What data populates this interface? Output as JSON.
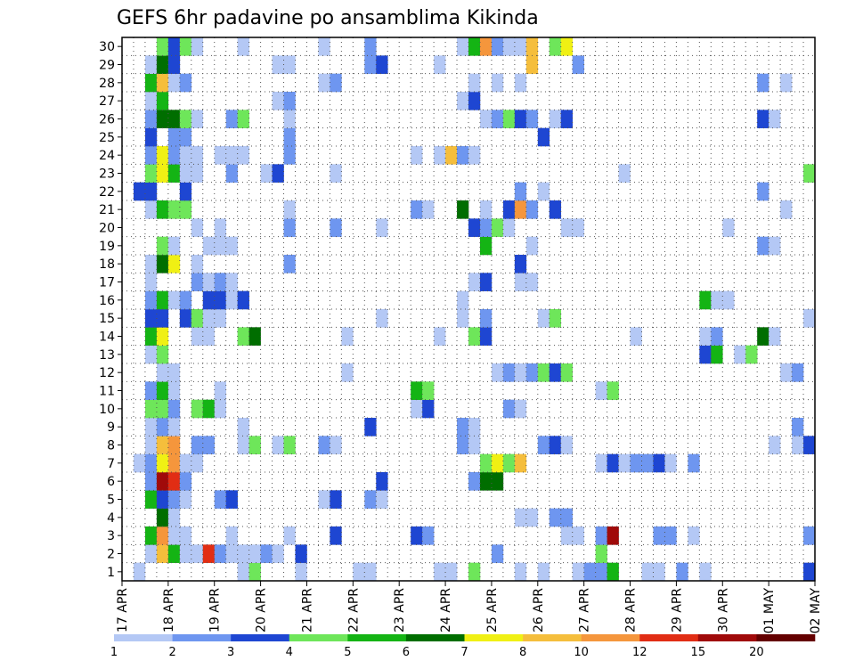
{
  "chart_data": {
    "type": "heatmap",
    "title": "GEFS 6hr padavine po ansamblima Kikinda",
    "xlabel": "",
    "ylabel": "",
    "x_tick_labels": [
      "17 APR",
      "18 APR",
      "19 APR",
      "20 APR",
      "21 APR",
      "22 APR",
      "23 APR",
      "24 APR",
      "25 APR",
      "26 APR",
      "27 APR",
      "28 APR",
      "29 APR",
      "30 APR",
      "01 MAY",
      "02 MAY"
    ],
    "y_tick_labels": [
      "1",
      "2",
      "3",
      "4",
      "5",
      "6",
      "7",
      "8",
      "9",
      "10",
      "11",
      "12",
      "13",
      "14",
      "15",
      "16",
      "17",
      "18",
      "19",
      "20",
      "21",
      "22",
      "23",
      "24",
      "25",
      "26",
      "27",
      "28",
      "29",
      "30"
    ],
    "x_range": [
      0,
      60
    ],
    "y_range": [
      0,
      30
    ],
    "grid": true,
    "colorbar": {
      "position": "bottom",
      "labels": [
        "1",
        "2",
        "3",
        "4",
        "5",
        "6",
        "7",
        "8",
        "10",
        "12",
        "15",
        "20"
      ],
      "colors": [
        "#b4c8f5",
        "#6e96f0",
        "#1e46d2",
        "#6ee65a",
        "#14b414",
        "#006e00",
        "#f0f014",
        "#f5be3c",
        "#f5963c",
        "#e12d14",
        "#a00a0a",
        "#640000"
      ]
    },
    "cells": [
      [
        1,
        0,
        0
      ],
      [
        10,
        0,
        0
      ],
      [
        11,
        0,
        3
      ],
      [
        15,
        0,
        0
      ],
      [
        20,
        0,
        0
      ],
      [
        21,
        0,
        0
      ],
      [
        27,
        0,
        0
      ],
      [
        28,
        0,
        0
      ],
      [
        30,
        0,
        3
      ],
      [
        34,
        0,
        0
      ],
      [
        36,
        0,
        0
      ],
      [
        39,
        0,
        0
      ],
      [
        40,
        0,
        1
      ],
      [
        41,
        0,
        1
      ],
      [
        42,
        0,
        4
      ],
      [
        45,
        0,
        0
      ],
      [
        46,
        0,
        0
      ],
      [
        48,
        0,
        1
      ],
      [
        50,
        0,
        0
      ],
      [
        59,
        0,
        2
      ],
      [
        2,
        1,
        0
      ],
      [
        3,
        1,
        7
      ],
      [
        4,
        1,
        4
      ],
      [
        5,
        1,
        0
      ],
      [
        6,
        1,
        0
      ],
      [
        7,
        1,
        9
      ],
      [
        8,
        1,
        1
      ],
      [
        9,
        1,
        0
      ],
      [
        10,
        1,
        0
      ],
      [
        11,
        1,
        0
      ],
      [
        12,
        1,
        1
      ],
      [
        13,
        1,
        0
      ],
      [
        15,
        1,
        2
      ],
      [
        32,
        1,
        1
      ],
      [
        41,
        1,
        3
      ],
      [
        2,
        2,
        4
      ],
      [
        3,
        2,
        8
      ],
      [
        4,
        2,
        0
      ],
      [
        5,
        2,
        0
      ],
      [
        9,
        2,
        0
      ],
      [
        14,
        2,
        0
      ],
      [
        18,
        2,
        2
      ],
      [
        25,
        2,
        2
      ],
      [
        26,
        2,
        1
      ],
      [
        38,
        2,
        0
      ],
      [
        39,
        2,
        0
      ],
      [
        41,
        2,
        1
      ],
      [
        42,
        2,
        10
      ],
      [
        46,
        2,
        1
      ],
      [
        47,
        2,
        1
      ],
      [
        49,
        2,
        0
      ],
      [
        59,
        2,
        1
      ],
      [
        3,
        3,
        5
      ],
      [
        4,
        3,
        0
      ],
      [
        34,
        3,
        0
      ],
      [
        35,
        3,
        0
      ],
      [
        37,
        3,
        1
      ],
      [
        38,
        3,
        1
      ],
      [
        2,
        4,
        4
      ],
      [
        3,
        4,
        2
      ],
      [
        4,
        4,
        1
      ],
      [
        5,
        4,
        0
      ],
      [
        8,
        4,
        1
      ],
      [
        9,
        4,
        2
      ],
      [
        17,
        4,
        0
      ],
      [
        18,
        4,
        2
      ],
      [
        21,
        4,
        1
      ],
      [
        22,
        4,
        0
      ],
      [
        2,
        5,
        1
      ],
      [
        3,
        5,
        10
      ],
      [
        4,
        5,
        9
      ],
      [
        5,
        5,
        1
      ],
      [
        22,
        5,
        2
      ],
      [
        30,
        5,
        1
      ],
      [
        31,
        5,
        5
      ],
      [
        32,
        5,
        5
      ],
      [
        1,
        6,
        0
      ],
      [
        2,
        6,
        1
      ],
      [
        3,
        6,
        6
      ],
      [
        4,
        6,
        8
      ],
      [
        5,
        6,
        0
      ],
      [
        6,
        6,
        0
      ],
      [
        31,
        6,
        3
      ],
      [
        32,
        6,
        6
      ],
      [
        33,
        6,
        3
      ],
      [
        34,
        6,
        7
      ],
      [
        41,
        6,
        0
      ],
      [
        42,
        6,
        2
      ],
      [
        43,
        6,
        0
      ],
      [
        44,
        6,
        1
      ],
      [
        45,
        6,
        1
      ],
      [
        46,
        6,
        2
      ],
      [
        47,
        6,
        0
      ],
      [
        49,
        6,
        1
      ],
      [
        2,
        7,
        0
      ],
      [
        3,
        7,
        7
      ],
      [
        4,
        7,
        8
      ],
      [
        6,
        7,
        1
      ],
      [
        7,
        7,
        1
      ],
      [
        10,
        7,
        0
      ],
      [
        11,
        7,
        3
      ],
      [
        13,
        7,
        0
      ],
      [
        14,
        7,
        3
      ],
      [
        17,
        7,
        1
      ],
      [
        18,
        7,
        0
      ],
      [
        29,
        7,
        1
      ],
      [
        30,
        7,
        0
      ],
      [
        36,
        7,
        1
      ],
      [
        37,
        7,
        2
      ],
      [
        38,
        7,
        0
      ],
      [
        56,
        7,
        0
      ],
      [
        58,
        7,
        0
      ],
      [
        59,
        7,
        2
      ],
      [
        2,
        8,
        0
      ],
      [
        3,
        8,
        1
      ],
      [
        4,
        8,
        0
      ],
      [
        10,
        8,
        0
      ],
      [
        21,
        8,
        2
      ],
      [
        29,
        8,
        1
      ],
      [
        30,
        8,
        0
      ],
      [
        58,
        8,
        1
      ],
      [
        2,
        9,
        3
      ],
      [
        3,
        9,
        3
      ],
      [
        4,
        9,
        1
      ],
      [
        6,
        9,
        3
      ],
      [
        7,
        9,
        4
      ],
      [
        8,
        9,
        0
      ],
      [
        25,
        9,
        0
      ],
      [
        26,
        9,
        2
      ],
      [
        33,
        9,
        1
      ],
      [
        34,
        9,
        0
      ],
      [
        2,
        10,
        1
      ],
      [
        3,
        10,
        4
      ],
      [
        4,
        10,
        0
      ],
      [
        8,
        10,
        0
      ],
      [
        25,
        10,
        4
      ],
      [
        26,
        10,
        3
      ],
      [
        41,
        10,
        0
      ],
      [
        42,
        10,
        3
      ],
      [
        3,
        11,
        0
      ],
      [
        4,
        11,
        0
      ],
      [
        19,
        11,
        0
      ],
      [
        32,
        11,
        0
      ],
      [
        33,
        11,
        1
      ],
      [
        34,
        11,
        0
      ],
      [
        35,
        11,
        1
      ],
      [
        36,
        11,
        3
      ],
      [
        37,
        11,
        2
      ],
      [
        38,
        11,
        3
      ],
      [
        57,
        11,
        0
      ],
      [
        58,
        11,
        1
      ],
      [
        2,
        12,
        0
      ],
      [
        3,
        12,
        3
      ],
      [
        50,
        12,
        2
      ],
      [
        51,
        12,
        4
      ],
      [
        53,
        12,
        0
      ],
      [
        54,
        12,
        3
      ],
      [
        2,
        13,
        4
      ],
      [
        3,
        13,
        6
      ],
      [
        6,
        13,
        0
      ],
      [
        7,
        13,
        0
      ],
      [
        10,
        13,
        3
      ],
      [
        11,
        13,
        5
      ],
      [
        19,
        13,
        0
      ],
      [
        27,
        13,
        0
      ],
      [
        30,
        13,
        3
      ],
      [
        31,
        13,
        2
      ],
      [
        44,
        13,
        0
      ],
      [
        50,
        13,
        0
      ],
      [
        51,
        13,
        1
      ],
      [
        55,
        13,
        5
      ],
      [
        56,
        13,
        0
      ],
      [
        2,
        14,
        2
      ],
      [
        3,
        14,
        2
      ],
      [
        5,
        14,
        2
      ],
      [
        6,
        14,
        3
      ],
      [
        7,
        14,
        0
      ],
      [
        8,
        14,
        0
      ],
      [
        22,
        14,
        0
      ],
      [
        29,
        14,
        0
      ],
      [
        31,
        14,
        1
      ],
      [
        36,
        14,
        0
      ],
      [
        37,
        14,
        3
      ],
      [
        59,
        14,
        0
      ],
      [
        2,
        15,
        1
      ],
      [
        3,
        15,
        4
      ],
      [
        4,
        15,
        0
      ],
      [
        5,
        15,
        1
      ],
      [
        7,
        15,
        2
      ],
      [
        8,
        15,
        2
      ],
      [
        9,
        15,
        0
      ],
      [
        10,
        15,
        2
      ],
      [
        29,
        15,
        0
      ],
      [
        50,
        15,
        4
      ],
      [
        51,
        15,
        0
      ],
      [
        52,
        15,
        0
      ],
      [
        2,
        16,
        0
      ],
      [
        6,
        16,
        1
      ],
      [
        7,
        16,
        0
      ],
      [
        8,
        16,
        1
      ],
      [
        9,
        16,
        0
      ],
      [
        30,
        16,
        0
      ],
      [
        31,
        16,
        2
      ],
      [
        34,
        16,
        0
      ],
      [
        35,
        16,
        0
      ],
      [
        2,
        17,
        0
      ],
      [
        3,
        17,
        5
      ],
      [
        4,
        17,
        6
      ],
      [
        6,
        17,
        0
      ],
      [
        14,
        17,
        1
      ],
      [
        34,
        17,
        2
      ],
      [
        3,
        18,
        3
      ],
      [
        4,
        18,
        0
      ],
      [
        7,
        18,
        0
      ],
      [
        8,
        18,
        0
      ],
      [
        9,
        18,
        0
      ],
      [
        31,
        18,
        4
      ],
      [
        35,
        18,
        0
      ],
      [
        55,
        18,
        1
      ],
      [
        56,
        18,
        0
      ],
      [
        6,
        19,
        0
      ],
      [
        8,
        19,
        0
      ],
      [
        14,
        19,
        1
      ],
      [
        18,
        19,
        1
      ],
      [
        22,
        19,
        0
      ],
      [
        30,
        19,
        2
      ],
      [
        31,
        19,
        1
      ],
      [
        32,
        19,
        3
      ],
      [
        33,
        19,
        0
      ],
      [
        38,
        19,
        0
      ],
      [
        39,
        19,
        0
      ],
      [
        52,
        19,
        0
      ],
      [
        2,
        20,
        0
      ],
      [
        3,
        20,
        4
      ],
      [
        4,
        20,
        3
      ],
      [
        5,
        20,
        3
      ],
      [
        14,
        20,
        0
      ],
      [
        25,
        20,
        1
      ],
      [
        26,
        20,
        0
      ],
      [
        29,
        20,
        5
      ],
      [
        31,
        20,
        0
      ],
      [
        33,
        20,
        2
      ],
      [
        34,
        20,
        8
      ],
      [
        35,
        20,
        1
      ],
      [
        37,
        20,
        2
      ],
      [
        57,
        20,
        0
      ],
      [
        1,
        21,
        2
      ],
      [
        2,
        21,
        2
      ],
      [
        5,
        21,
        2
      ],
      [
        34,
        21,
        1
      ],
      [
        36,
        21,
        0
      ],
      [
        55,
        21,
        1
      ],
      [
        2,
        22,
        3
      ],
      [
        3,
        22,
        6
      ],
      [
        4,
        22,
        4
      ],
      [
        5,
        22,
        0
      ],
      [
        6,
        22,
        0
      ],
      [
        9,
        22,
        1
      ],
      [
        12,
        22,
        0
      ],
      [
        13,
        22,
        2
      ],
      [
        18,
        22,
        0
      ],
      [
        43,
        22,
        0
      ],
      [
        59,
        22,
        3
      ],
      [
        2,
        23,
        1
      ],
      [
        3,
        23,
        6
      ],
      [
        4,
        23,
        1
      ],
      [
        5,
        23,
        0
      ],
      [
        6,
        23,
        0
      ],
      [
        8,
        23,
        0
      ],
      [
        9,
        23,
        0
      ],
      [
        10,
        23,
        0
      ],
      [
        14,
        23,
        1
      ],
      [
        25,
        23,
        0
      ],
      [
        27,
        23,
        0
      ],
      [
        28,
        23,
        7
      ],
      [
        29,
        23,
        1
      ],
      [
        30,
        23,
        0
      ],
      [
        2,
        24,
        2
      ],
      [
        4,
        24,
        1
      ],
      [
        5,
        24,
        1
      ],
      [
        14,
        24,
        1
      ],
      [
        36,
        24,
        2
      ],
      [
        2,
        25,
        1
      ],
      [
        3,
        25,
        5
      ],
      [
        4,
        25,
        5
      ],
      [
        5,
        25,
        3
      ],
      [
        6,
        25,
        0
      ],
      [
        9,
        25,
        1
      ],
      [
        10,
        25,
        3
      ],
      [
        14,
        25,
        0
      ],
      [
        31,
        25,
        0
      ],
      [
        32,
        25,
        1
      ],
      [
        33,
        25,
        3
      ],
      [
        34,
        25,
        2
      ],
      [
        35,
        25,
        1
      ],
      [
        37,
        25,
        0
      ],
      [
        38,
        25,
        2
      ],
      [
        55,
        25,
        2
      ],
      [
        56,
        25,
        0
      ],
      [
        2,
        26,
        0
      ],
      [
        3,
        26,
        4
      ],
      [
        13,
        26,
        0
      ],
      [
        14,
        26,
        1
      ],
      [
        29,
        26,
        0
      ],
      [
        30,
        26,
        2
      ],
      [
        2,
        27,
        4
      ],
      [
        3,
        27,
        7
      ],
      [
        4,
        27,
        0
      ],
      [
        5,
        27,
        1
      ],
      [
        17,
        27,
        0
      ],
      [
        18,
        27,
        1
      ],
      [
        30,
        27,
        0
      ],
      [
        32,
        27,
        0
      ],
      [
        34,
        27,
        0
      ],
      [
        55,
        27,
        1
      ],
      [
        57,
        27,
        0
      ],
      [
        2,
        28,
        0
      ],
      [
        3,
        28,
        5
      ],
      [
        4,
        28,
        2
      ],
      [
        13,
        28,
        0
      ],
      [
        14,
        28,
        0
      ],
      [
        21,
        28,
        1
      ],
      [
        22,
        28,
        2
      ],
      [
        27,
        28,
        0
      ],
      [
        35,
        28,
        7
      ],
      [
        39,
        28,
        1
      ],
      [
        3,
        29,
        3
      ],
      [
        4,
        29,
        2
      ],
      [
        5,
        29,
        3
      ],
      [
        6,
        29,
        0
      ],
      [
        10,
        29,
        0
      ],
      [
        17,
        29,
        0
      ],
      [
        21,
        29,
        1
      ],
      [
        29,
        29,
        0
      ],
      [
        30,
        29,
        4
      ],
      [
        31,
        29,
        8
      ],
      [
        32,
        29,
        1
      ],
      [
        33,
        29,
        0
      ],
      [
        34,
        29,
        0
      ],
      [
        35,
        29,
        7
      ],
      [
        37,
        29,
        3
      ],
      [
        38,
        29,
        6
      ],
      [
        40,
        -1,
        2
      ],
      [
        41,
        -1,
        5
      ]
    ]
  }
}
